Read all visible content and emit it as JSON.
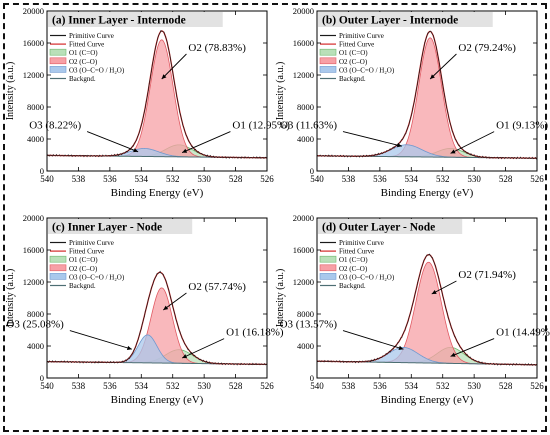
{
  "colors": {
    "primitive": "#1a1a1a",
    "fitted": "#d42a2a",
    "o1_fill": "#b9e0b9",
    "o1_line": "#6fb86f",
    "o2_fill": "#f7a0a6",
    "o2_line": "#e05a63",
    "o3_fill": "#a9c8ec",
    "o3_line": "#6f98cf",
    "background_line": "#4d6e73",
    "frame": "#111111"
  },
  "chart_data": [
    {
      "type": "line",
      "title": "(a) Inner Layer - Internode",
      "xlabel": "Binding Energy (eV)",
      "ylabel": "Intensity (a.u.)",
      "xlim": [
        540,
        526
      ],
      "ylim": [
        0,
        20000
      ],
      "x_ticks": [
        "540",
        "538",
        "536",
        "534",
        "532",
        "530",
        "528",
        "526"
      ],
      "y_ticks": [
        "0",
        "4000",
        "8000",
        "12000",
        "16000",
        "20000"
      ],
      "legend": [
        "Primitive Curve",
        "Fitted Curve",
        "O1 (C=O)",
        "O2 (C–O)",
        "O3 (O–C=O / H₂O)",
        "Backgnd."
      ],
      "baseline": [
        [
          540,
          1950
        ],
        [
          526,
          1650
        ]
      ],
      "peaks": [
        {
          "name": "O1 (C=O)",
          "center": 531.6,
          "fwhm": 2.0,
          "height": 1500
        },
        {
          "name": "O2 (C–O)",
          "center": 532.7,
          "fwhm": 1.7,
          "height": 14600
        },
        {
          "name": "O3 (O–C=O / H₂O)",
          "center": 533.8,
          "fwhm": 2.1,
          "height": 1000
        }
      ],
      "annotations": [
        {
          "text": "O2 (78.83%)",
          "x": 532.7,
          "y": 11500,
          "tx": 531.0,
          "ty": 15000
        },
        {
          "text": "O3 (8.22%)",
          "x": 534.2,
          "y": 2400,
          "tx": 537.7,
          "ty": 5300
        },
        {
          "text": "O1 (12.95%)",
          "x": 531.4,
          "y": 2300,
          "tx": 528.2,
          "ty": 5300
        }
      ]
    },
    {
      "type": "line",
      "title": "(b) Outer Layer - Internode",
      "xlabel": "Binding Energy (eV)",
      "ylabel": "Intensity (a.u.)",
      "xlim": [
        540,
        526
      ],
      "ylim": [
        0,
        20000
      ],
      "x_ticks": [
        "540",
        "538",
        "536",
        "534",
        "532",
        "530",
        "528",
        "526"
      ],
      "y_ticks": [
        "0",
        "4000",
        "8000",
        "12000",
        "16000",
        "20000"
      ],
      "legend": [
        "Primitive Curve",
        "Fitted Curve",
        "O1 (C=O)",
        "O2 (C–O)",
        "O3 (O–C=O / H₂O)",
        "Backgnd."
      ],
      "baseline": [
        [
          540,
          1900
        ],
        [
          526,
          1600
        ]
      ],
      "peaks": [
        {
          "name": "O1 (C=O)",
          "center": 531.5,
          "fwhm": 2.0,
          "height": 1100
        },
        {
          "name": "O2 (C–O)",
          "center": 532.8,
          "fwhm": 1.7,
          "height": 14900
        },
        {
          "name": "O3 (O–C=O / H₂O)",
          "center": 534.3,
          "fwhm": 2.3,
          "height": 1500
        }
      ],
      "annotations": [
        {
          "text": "O2 (79.24%)",
          "x": 532.8,
          "y": 11500,
          "tx": 531.0,
          "ty": 15000
        },
        {
          "text": "O3 (11.63%)",
          "x": 534.6,
          "y": 3100,
          "tx": 538.6,
          "ty": 5300
        },
        {
          "text": "O1 (9.13%)",
          "x": 531.5,
          "y": 2200,
          "tx": 528.6,
          "ty": 5300
        }
      ]
    },
    {
      "type": "line",
      "title": "(c) Inner Layer - Node",
      "xlabel": "Binding Energy (eV)",
      "ylabel": "Intensity (a.u.)",
      "xlim": [
        540,
        526
      ],
      "ylim": [
        0,
        20000
      ],
      "x_ticks": [
        "540",
        "538",
        "536",
        "534",
        "532",
        "530",
        "528",
        "526"
      ],
      "y_ticks": [
        "0",
        "4000",
        "8000",
        "12000",
        "16000",
        "20000"
      ],
      "legend": [
        "Primitive Curve",
        "Fitted Curve",
        "O1 (C=O)",
        "O2 (C–O)",
        "O3 (O–C=O / H₂O)",
        "Backgnd."
      ],
      "baseline": [
        [
          540,
          2050
        ],
        [
          526,
          1700
        ]
      ],
      "peaks": [
        {
          "name": "O1 (C=O)",
          "center": 531.6,
          "fwhm": 2.0,
          "height": 1700
        },
        {
          "name": "O2 (C–O)",
          "center": 532.7,
          "fwhm": 1.6,
          "height": 9400
        },
        {
          "name": "O3 (O–C=O / H₂O)",
          "center": 533.6,
          "fwhm": 1.4,
          "height": 3500
        }
      ],
      "annotations": [
        {
          "text": "O2 (57.74%)",
          "x": 532.6,
          "y": 8500,
          "tx": 531.0,
          "ty": 11000
        },
        {
          "text": "O3 (25.08%)",
          "x": 534.6,
          "y": 3600,
          "tx": 538.8,
          "ty": 6300
        },
        {
          "text": "O1 (16.18%)",
          "x": 531.4,
          "y": 2500,
          "tx": 528.6,
          "ty": 5300
        }
      ]
    },
    {
      "type": "line",
      "title": "(d) Outer Layer - Node",
      "xlabel": "Binding Energy (eV)",
      "ylabel": "Intensity (a.u.)",
      "xlim": [
        540,
        526
      ],
      "ylim": [
        0,
        20000
      ],
      "x_ticks": [
        "540",
        "538",
        "536",
        "534",
        "532",
        "530",
        "528",
        "526"
      ],
      "y_ticks": [
        "0",
        "4000",
        "8000",
        "12000",
        "16000",
        "20000"
      ],
      "legend": [
        "Primitive Curve",
        "Fitted Curve",
        "O1 (C=O)",
        "O2 (C–O)",
        "O3 (O–C=O / H₂O)",
        "Backgnd."
      ],
      "baseline": [
        [
          540,
          2100
        ],
        [
          526,
          1650
        ]
      ],
      "peaks": [
        {
          "name": "O1 (C=O)",
          "center": 531.5,
          "fwhm": 2.0,
          "height": 2000
        },
        {
          "name": "O2 (C–O)",
          "center": 532.9,
          "fwhm": 1.9,
          "height": 12600
        },
        {
          "name": "O3 (O–C=O / H₂O)",
          "center": 534.5,
          "fwhm": 2.2,
          "height": 1900
        }
      ],
      "annotations": [
        {
          "text": "O2 (71.94%)",
          "x": 532.7,
          "y": 10500,
          "tx": 531.0,
          "ty": 12500
        },
        {
          "text": "O3 (13.57%)",
          "x": 534.5,
          "y": 3600,
          "tx": 538.6,
          "ty": 6300
        },
        {
          "text": "O1 (14.49%)",
          "x": 531.5,
          "y": 2700,
          "tx": 528.6,
          "ty": 5300
        }
      ]
    }
  ]
}
